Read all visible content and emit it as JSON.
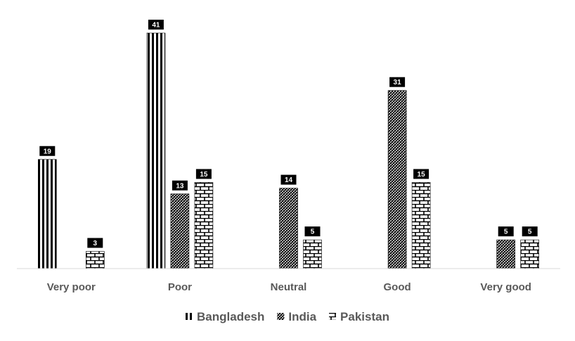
{
  "chart_data": {
    "type": "bar",
    "categories": [
      "Very poor",
      "Poor",
      "Neutral",
      "Good",
      "Very good"
    ],
    "series": [
      {
        "name": "Bangladesh",
        "pattern": "vertical-stripes",
        "values": [
          19,
          41,
          0,
          0,
          0
        ]
      },
      {
        "name": "India",
        "pattern": "diagonal-hatch",
        "values": [
          0,
          13,
          14,
          31,
          5
        ]
      },
      {
        "name": "Pakistan",
        "pattern": "brick",
        "values": [
          3,
          15,
          5,
          15,
          5
        ]
      }
    ],
    "ylim": [
      0,
      41
    ],
    "grid": false,
    "legend_position": "bottom",
    "colors": {
      "ink": "#000000",
      "label_bg": "#000000",
      "label_text": "#ffffff",
      "axis": "#d9d9d9",
      "text": "#595959"
    }
  }
}
